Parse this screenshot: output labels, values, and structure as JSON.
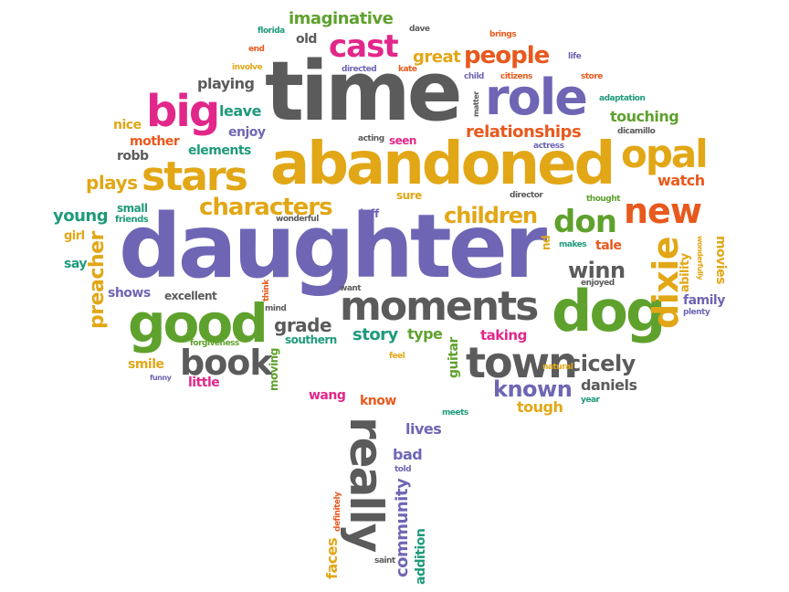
{
  "palette": {
    "purple": "#6e66b4",
    "pink": "#e2278a",
    "orange": "#e8591d",
    "gold": "#e2a716",
    "green": "#5fa12d",
    "teal": "#1f9a7b",
    "gray": "#5b5b5b"
  },
  "words": [
    {
      "text": "daughter",
      "color": "purple"
    },
    {
      "text": "time",
      "color": "gray"
    },
    {
      "text": "abandoned",
      "color": "gold"
    },
    {
      "text": "role",
      "color": "purple"
    },
    {
      "text": "dog",
      "color": "green"
    },
    {
      "text": "good",
      "color": "green"
    },
    {
      "text": "moments",
      "color": "gray"
    },
    {
      "text": "town",
      "color": "gray"
    },
    {
      "text": "stars",
      "color": "gold"
    },
    {
      "text": "opal",
      "color": "gold"
    },
    {
      "text": "big",
      "color": "pink"
    },
    {
      "text": "cast",
      "color": "pink"
    },
    {
      "text": "people",
      "color": "orange"
    },
    {
      "text": "new",
      "color": "orange"
    },
    {
      "text": "book",
      "color": "gray"
    },
    {
      "text": "characters",
      "color": "gold"
    },
    {
      "text": "children",
      "color": "gold"
    },
    {
      "text": "don",
      "color": "green"
    },
    {
      "text": "dixie",
      "color": "gold"
    },
    {
      "text": "really",
      "color": "gray"
    },
    {
      "text": "winn",
      "color": "gray"
    },
    {
      "text": "cicely",
      "color": "gray"
    },
    {
      "text": "known",
      "color": "purple"
    },
    {
      "text": "relationships",
      "color": "orange"
    },
    {
      "text": "preacher",
      "color": "gold"
    },
    {
      "text": "imaginative",
      "color": "green"
    },
    {
      "text": "great",
      "color": "gold"
    },
    {
      "text": "community",
      "color": "purple"
    },
    {
      "text": "grade",
      "color": "gray"
    },
    {
      "text": "story",
      "color": "teal"
    },
    {
      "text": "young",
      "color": "teal"
    },
    {
      "text": "plays",
      "color": "gold"
    },
    {
      "text": "touching",
      "color": "green"
    },
    {
      "text": "playing",
      "color": "gray"
    },
    {
      "text": "leave",
      "color": "teal"
    },
    {
      "text": "watch",
      "color": "orange"
    },
    {
      "text": "daniels",
      "color": "gray"
    },
    {
      "text": "tough",
      "color": "gold"
    },
    {
      "text": "mother",
      "color": "orange"
    },
    {
      "text": "elements",
      "color": "teal"
    },
    {
      "text": "nice",
      "color": "gold"
    },
    {
      "text": "robb",
      "color": "gray"
    },
    {
      "text": "enjoy",
      "color": "purple"
    },
    {
      "text": "old",
      "color": "gray"
    },
    {
      "text": "shows",
      "color": "purple"
    },
    {
      "text": "southern",
      "color": "teal"
    },
    {
      "text": "type",
      "color": "green"
    },
    {
      "text": "taking",
      "color": "pink"
    },
    {
      "text": "guitar",
      "color": "green"
    },
    {
      "text": "moving",
      "color": "green"
    },
    {
      "text": "faces",
      "color": "gold"
    },
    {
      "text": "addition",
      "color": "teal"
    },
    {
      "text": "family",
      "color": "purple"
    },
    {
      "text": "movies",
      "color": "gold"
    },
    {
      "text": "ability",
      "color": "gold"
    },
    {
      "text": "tale",
      "color": "orange"
    },
    {
      "text": "smile",
      "color": "gold"
    },
    {
      "text": "little",
      "color": "pink"
    },
    {
      "text": "wang",
      "color": "pink"
    },
    {
      "text": "know",
      "color": "orange"
    },
    {
      "text": "lives",
      "color": "purple"
    },
    {
      "text": "bad",
      "color": "purple"
    },
    {
      "text": "seen",
      "color": "pink"
    },
    {
      "text": "sure",
      "color": "gold"
    },
    {
      "text": "jeff",
      "color": "purple"
    },
    {
      "text": "small",
      "color": "teal"
    },
    {
      "text": "say",
      "color": "teal"
    },
    {
      "text": "girl",
      "color": "gold"
    },
    {
      "text": "excellent",
      "color": "gray"
    },
    {
      "text": "friends",
      "color": "teal"
    },
    {
      "text": "wonderful",
      "color": "gray"
    },
    {
      "text": "want",
      "color": "gray"
    },
    {
      "text": "think",
      "color": "orange"
    },
    {
      "text": "mind",
      "color": "gray"
    },
    {
      "text": "forgiveness",
      "color": "green"
    },
    {
      "text": "feel",
      "color": "gold"
    },
    {
      "text": "funny",
      "color": "purple"
    },
    {
      "text": "natural",
      "color": "gold"
    },
    {
      "text": "year",
      "color": "teal"
    },
    {
      "text": "meets",
      "color": "teal"
    },
    {
      "text": "told",
      "color": "purple"
    },
    {
      "text": "saint",
      "color": "gray"
    },
    {
      "text": "definitely",
      "color": "orange"
    },
    {
      "text": "florida",
      "color": "teal"
    },
    {
      "text": "end",
      "color": "orange"
    },
    {
      "text": "involve",
      "color": "gold"
    },
    {
      "text": "dave",
      "color": "gray"
    },
    {
      "text": "directed",
      "color": "purple"
    },
    {
      "text": "kate",
      "color": "orange"
    },
    {
      "text": "child",
      "color": "purple"
    },
    {
      "text": "matter",
      "color": "gray"
    },
    {
      "text": "brings",
      "color": "orange"
    },
    {
      "text": "citizens",
      "color": "orange"
    },
    {
      "text": "life",
      "color": "purple"
    },
    {
      "text": "store",
      "color": "orange"
    },
    {
      "text": "adaptation",
      "color": "teal"
    },
    {
      "text": "dicamillo",
      "color": "gray"
    },
    {
      "text": "acting",
      "color": "gray"
    },
    {
      "text": "actress",
      "color": "purple"
    },
    {
      "text": "director",
      "color": "gray"
    },
    {
      "text": "thought",
      "color": "green"
    },
    {
      "text": "makes",
      "color": "teal"
    },
    {
      "text": "enjoyed",
      "color": "gray"
    },
    {
      "text": "wonderfully",
      "color": "gold"
    },
    {
      "text": "plenty",
      "color": "purple"
    },
    {
      "text": "nd",
      "color": "gold"
    }
  ]
}
